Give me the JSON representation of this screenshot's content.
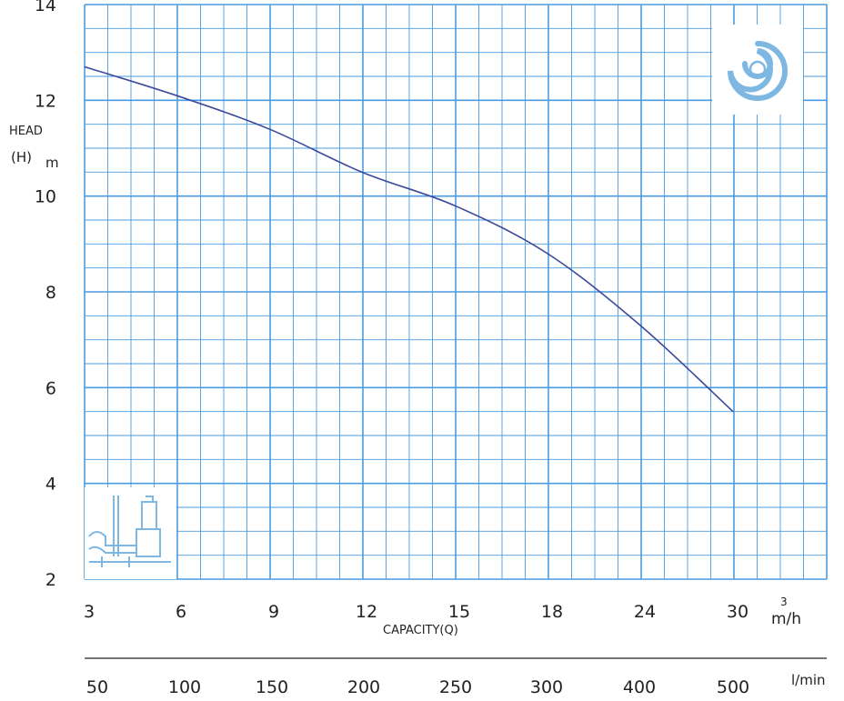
{
  "chart_data": {
    "type": "line",
    "ylabel_line1": "HEAD",
    "ylabel_line2": "(H)",
    "ylabel_unit": "m",
    "xlabel": "CAPACITY(Q)",
    "ylim": [
      2,
      14
    ],
    "y_ticks": [
      "2",
      "4",
      "6",
      "8",
      "10",
      "12",
      "14"
    ],
    "x_ticks_m3h": [
      "3",
      "6",
      "9",
      "12",
      "15",
      "18",
      "24",
      "30"
    ],
    "x_unit_m3h_sup": "3",
    "x_unit_m3h": "m/h",
    "x_ticks_lmin": [
      "50",
      "100",
      "150",
      "200",
      "250",
      "300",
      "400",
      "500"
    ],
    "x_unit_lmin": "l/min",
    "grid": true,
    "series": [
      {
        "color": "#3b4a9a",
        "x": [
          3,
          6,
          9,
          12,
          15,
          18,
          24,
          30
        ],
        "y": [
          12.7,
          12.1,
          11.4,
          10.5,
          9.8,
          8.8,
          7.3,
          5.5
        ]
      }
    ]
  },
  "colors": {
    "grid": "#4a9be0",
    "curve": "#3b4a9a",
    "logo": "#7fb7e3"
  },
  "icons": {
    "logo": "swirl-logo-icon",
    "pump": "pump-drawing-icon"
  }
}
